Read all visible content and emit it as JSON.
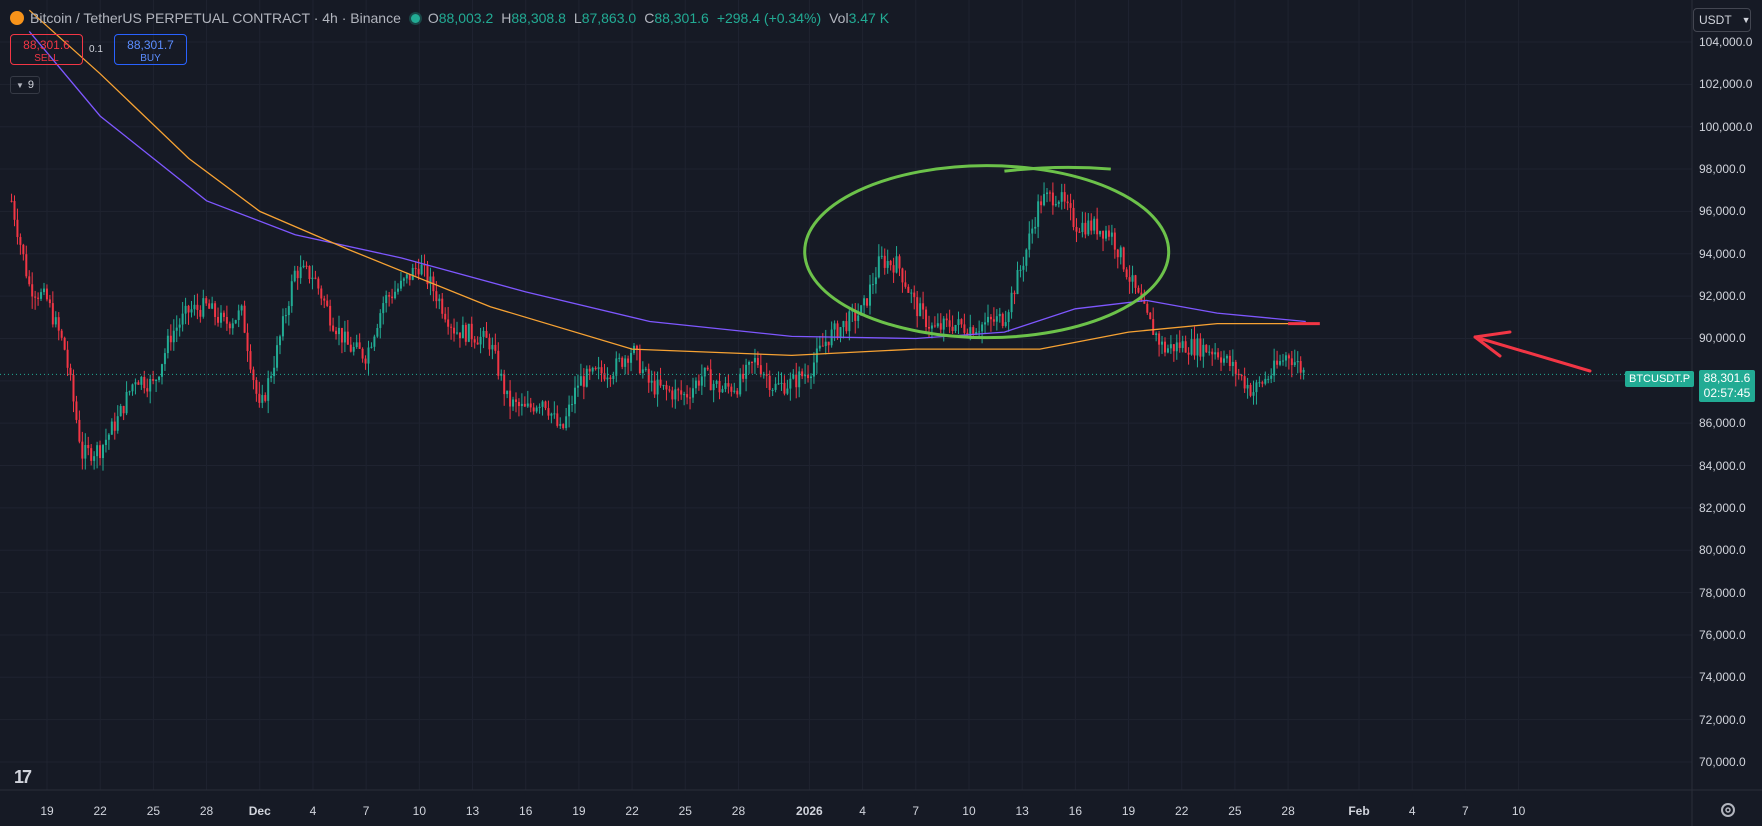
{
  "header": {
    "title": "Bitcoin / TetherUS PERPETUAL CONTRACT · 4h · Binance",
    "ohlc": [
      {
        "k": "O",
        "v": "88,003.2"
      },
      {
        "k": "H",
        "v": "88,308.8"
      },
      {
        "k": "L",
        "v": "87,863.0"
      },
      {
        "k": "C",
        "v": "88,301.6"
      },
      {
        "k": "",
        "v": "+298.4 (+0.34%)"
      },
      {
        "k": "Vol",
        "v": "3.47 K"
      }
    ]
  },
  "trade": {
    "sell_price": "88,301.6",
    "sell_label": "SELL",
    "buy_price": "88,301.7",
    "buy_label": "BUY",
    "spread": "0.1"
  },
  "indicators_count": "9",
  "currency": "USDT",
  "price_label": {
    "symbol": "BTCUSDT.P",
    "price": "88,301.6",
    "countdown": "02:57:45"
  },
  "colors": {
    "background": "#161a25",
    "grid": "#1f2330",
    "up": "#22ab94",
    "down": "#f23645",
    "ma_orange": "#f7a233",
    "ma_purple": "#7e57ff",
    "annot_green": "#6cc24a",
    "annot_red": "#f23645"
  },
  "chart_data": {
    "type": "candlestick",
    "y_axis": {
      "range": [
        68000,
        105000
      ],
      "ticks": [
        "104,000.0",
        "102,000.0",
        "100,000.0",
        "98,000.0",
        "96,000.0",
        "94,000.0",
        "92,000.0",
        "90,000.0",
        "88,000.0",
        "86,000.0",
        "84,000.0",
        "82,000.0",
        "80,000.0",
        "78,000.0",
        "76,000.0",
        "74,000.0",
        "72,000.0",
        "70,000.0"
      ]
    },
    "x_axis": {
      "ticks": [
        "19",
        "22",
        "25",
        "28",
        "Dec",
        "4",
        "7",
        "10",
        "13",
        "16",
        "19",
        "22",
        "25",
        "28",
        "2026",
        "4",
        "7",
        "10",
        "13",
        "16",
        "19",
        "22",
        "25",
        "28",
        "Feb",
        "4",
        "7",
        "10"
      ],
      "tick_dates": [
        "2025-11-19",
        "2025-11-22",
        "2025-11-25",
        "2025-11-28",
        "2025-12-01",
        "2025-12-04",
        "2025-12-07",
        "2025-12-10",
        "2025-12-13",
        "2025-12-16",
        "2025-12-19",
        "2025-12-22",
        "2025-12-25",
        "2025-12-28",
        "2026-01-01",
        "2026-01-04",
        "2026-01-07",
        "2026-01-10",
        "2026-01-13",
        "2026-01-16",
        "2026-01-19",
        "2026-01-22",
        "2026-01-25",
        "2026-01-28",
        "2026-02-01",
        "2026-02-04",
        "2026-02-07",
        "2026-02-10"
      ],
      "bold": [
        "Dec",
        "2026",
        "Feb"
      ]
    },
    "price_path": [
      [
        "2025-11-17",
        96500
      ],
      [
        "2025-11-18",
        92500
      ],
      [
        "2025-11-19",
        91800
      ],
      [
        "2025-11-20",
        89500
      ],
      [
        "2025-11-21",
        84500
      ],
      [
        "2025-11-22",
        84800
      ],
      [
        "2025-11-23",
        86200
      ],
      [
        "2025-11-24",
        88200
      ],
      [
        "2025-11-25",
        87800
      ],
      [
        "2025-11-26",
        90200
      ],
      [
        "2025-11-27",
        91300
      ],
      [
        "2025-11-28",
        91500
      ],
      [
        "2025-11-29",
        90700
      ],
      [
        "2025-11-30",
        91200
      ],
      [
        "2025-12-01",
        86500
      ],
      [
        "2025-12-02",
        89500
      ],
      [
        "2025-12-03",
        93200
      ],
      [
        "2025-12-04",
        93000
      ],
      [
        "2025-12-05",
        91000
      ],
      [
        "2025-12-06",
        89600
      ],
      [
        "2025-12-07",
        89200
      ],
      [
        "2025-12-08",
        91800
      ],
      [
        "2025-12-09",
        92500
      ],
      [
        "2025-12-10",
        93500
      ],
      [
        "2025-12-11",
        92000
      ],
      [
        "2025-12-12",
        90400
      ],
      [
        "2025-12-13",
        90200
      ],
      [
        "2025-12-14",
        89800
      ],
      [
        "2025-12-15",
        87000
      ],
      [
        "2025-12-16",
        86600
      ],
      [
        "2025-12-17",
        87200
      ],
      [
        "2025-12-18",
        85500
      ],
      [
        "2025-12-19",
        88000
      ],
      [
        "2025-12-20",
        88300
      ],
      [
        "2025-12-21",
        88600
      ],
      [
        "2025-12-22",
        89500
      ],
      [
        "2025-12-23",
        87800
      ],
      [
        "2025-12-24",
        87500
      ],
      [
        "2025-12-25",
        87300
      ],
      [
        "2025-12-26",
        88300
      ],
      [
        "2025-12-27",
        87600
      ],
      [
        "2025-12-28",
        87800
      ],
      [
        "2025-12-29",
        89000
      ],
      [
        "2025-12-30",
        87700
      ],
      [
        "2025-12-31",
        87900
      ],
      [
        "2026-01-01",
        88500
      ],
      [
        "2026-01-02",
        90000
      ],
      [
        "2026-01-03",
        90700
      ],
      [
        "2026-01-04",
        91300
      ],
      [
        "2026-01-05",
        93700
      ],
      [
        "2026-01-06",
        93500
      ],
      [
        "2026-01-07",
        91500
      ],
      [
        "2026-01-08",
        90400
      ],
      [
        "2026-01-09",
        90700
      ],
      [
        "2026-01-10",
        90500
      ],
      [
        "2026-01-11",
        90700
      ],
      [
        "2026-01-12",
        91000
      ],
      [
        "2026-01-13",
        93500
      ],
      [
        "2026-01-14",
        96500
      ],
      [
        "2026-01-15",
        96800
      ],
      [
        "2026-01-16",
        95400
      ],
      [
        "2026-01-17",
        95300
      ],
      [
        "2026-01-18",
        95000
      ],
      [
        "2026-01-19",
        93000
      ],
      [
        "2026-01-20",
        91000
      ],
      [
        "2026-01-21",
        89500
      ],
      [
        "2026-01-22",
        89700
      ],
      [
        "2026-01-23",
        89600
      ],
      [
        "2026-01-24",
        89400
      ],
      [
        "2026-01-25",
        88500
      ],
      [
        "2026-01-26",
        87500
      ],
      [
        "2026-01-27",
        88300
      ],
      [
        "2026-01-28",
        89300
      ],
      [
        "2026-01-29",
        88302
      ]
    ],
    "series": [
      {
        "values": [
          [
            "2025-11-18",
            104500
          ],
          [
            "2025-11-22",
            100500
          ],
          [
            "2025-11-28",
            96500
          ],
          [
            "2025-12-03",
            94900
          ],
          [
            "2025-12-09",
            93800
          ],
          [
            "2025-12-16",
            92200
          ],
          [
            "2025-12-23",
            90800
          ],
          [
            "2025-12-31",
            90100
          ],
          [
            "2026-01-07",
            90000
          ],
          [
            "2026-01-12",
            90300
          ],
          [
            "2026-01-16",
            91400
          ],
          [
            "2026-01-20",
            91800
          ],
          [
            "2026-01-24",
            91200
          ],
          [
            "2026-01-29",
            90800
          ]
        ]
      },
      {
        "values": [
          [
            "2025-11-18",
            105500
          ],
          [
            "2025-11-22",
            102500
          ],
          [
            "2025-11-27",
            98500
          ],
          [
            "2025-12-01",
            96000
          ],
          [
            "2025-12-06",
            94200
          ],
          [
            "2025-12-14",
            91500
          ],
          [
            "2025-12-22",
            89500
          ],
          [
            "2025-12-31",
            89200
          ],
          [
            "2026-01-07",
            89500
          ],
          [
            "2026-01-14",
            89500
          ],
          [
            "2026-01-19",
            90300
          ],
          [
            "2026-01-24",
            90700
          ],
          [
            "2026-01-29",
            90700
          ]
        ]
      }
    ],
    "last_price": 88301.6,
    "annotations": [
      "green ellipse around Jan 4–Jan 19 top",
      "red horizontal line ≈90,700",
      "red arrow pointing left to line"
    ]
  }
}
